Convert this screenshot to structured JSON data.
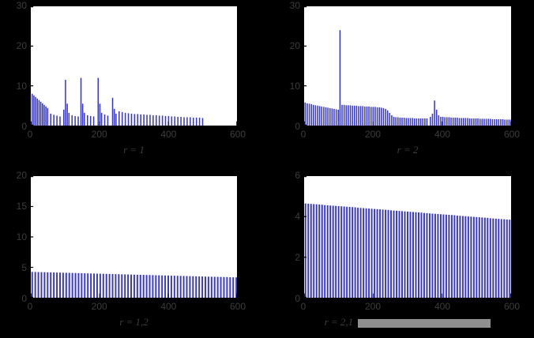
{
  "page": {
    "background_color": "#000000"
  },
  "figure": {
    "plot_background": "#ffffff",
    "axis_color": "#000000",
    "tick_label_color": "#3c3c3c",
    "bar_color": "#3737c8",
    "selection_highlight_color": "#8f8f8f"
  },
  "chart_data": [
    {
      "id": "a",
      "type": "bar",
      "xlabel": "r = 1",
      "xlim": [
        0,
        600
      ],
      "ylim": [
        0,
        30
      ],
      "xticks": [
        0,
        200,
        400,
        600
      ],
      "yticks": [
        0,
        10,
        20,
        30
      ],
      "bar_width": 3.5,
      "x": [
        4,
        9,
        14,
        19,
        24,
        29,
        34,
        39,
        44,
        49,
        58,
        67,
        76,
        85,
        96,
        101,
        106,
        111,
        120,
        129,
        138,
        146,
        151,
        156,
        165,
        174,
        183,
        196,
        201,
        206,
        215,
        224,
        238,
        243,
        248,
        257,
        266,
        275,
        284,
        293,
        302,
        311,
        320,
        329,
        338,
        347,
        356,
        365,
        374,
        383,
        392,
        401,
        410,
        419,
        428,
        437,
        446,
        455,
        464,
        473,
        482,
        491,
        500
      ],
      "values": [
        8,
        7.6,
        7.2,
        6.8,
        6.4,
        6,
        5.6,
        5.2,
        4.8,
        4.4,
        3,
        2.7,
        2.5,
        2.3,
        4,
        11.5,
        5.5,
        3.2,
        2.6,
        2.4,
        2.3,
        12,
        5.5,
        3.2,
        2.6,
        2.4,
        2.3,
        12,
        5.5,
        3.2,
        2.8,
        2.5,
        7,
        4.2,
        3,
        3.6,
        3.4,
        3.2,
        3.1,
        3,
        2.9,
        2.9,
        2.8,
        2.8,
        2.7,
        2.7,
        2.6,
        2.6,
        2.5,
        2.5,
        2.4,
        2.4,
        2.3,
        2.3,
        2.2,
        2.2,
        2.1,
        2.1,
        2.1,
        2,
        2,
        2,
        1.9
      ]
    },
    {
      "id": "b",
      "type": "bar",
      "xlabel": "r = 2",
      "xlim": [
        0,
        600
      ],
      "ylim": [
        0,
        30
      ],
      "xticks": [
        0,
        200,
        400,
        600
      ],
      "yticks": [
        0,
        10,
        20,
        30
      ],
      "bar_width": 3.5,
      "x": [
        3,
        9,
        15,
        21,
        27,
        33,
        39,
        45,
        51,
        57,
        63,
        69,
        75,
        81,
        87,
        93,
        99,
        104,
        110,
        116,
        122,
        128,
        134,
        140,
        146,
        152,
        158,
        164,
        170,
        176,
        182,
        188,
        194,
        200,
        206,
        212,
        218,
        224,
        230,
        236,
        242,
        248,
        254,
        260,
        266,
        272,
        278,
        284,
        290,
        296,
        302,
        308,
        314,
        320,
        326,
        332,
        338,
        344,
        350,
        356,
        366,
        372,
        378,
        384,
        390,
        396,
        402,
        408,
        414,
        420,
        426,
        432,
        438,
        444,
        450,
        456,
        462,
        468,
        474,
        480,
        486,
        492,
        498,
        504,
        510,
        516,
        522,
        528,
        534,
        540,
        546,
        552,
        558,
        564,
        570,
        576,
        582,
        588,
        594,
        600
      ],
      "values": [
        5.8,
        5.6,
        5.5,
        5.4,
        5.2,
        5.1,
        5,
        4.9,
        4.8,
        4.7,
        4.6,
        4.5,
        4.4,
        4.3,
        4.2,
        4.1,
        4,
        24,
        5.2,
        5.2,
        5.1,
        5.1,
        5.1,
        5,
        5,
        5,
        4.9,
        4.9,
        4.9,
        4.8,
        4.8,
        4.8,
        4.7,
        4.7,
        4.7,
        4.6,
        4.6,
        4.5,
        4.4,
        4.2,
        3.8,
        3.2,
        2.6,
        2.2,
        2.1,
        2.1,
        2,
        2,
        2,
        1.9,
        1.9,
        1.9,
        1.9,
        1.8,
        1.8,
        1.8,
        1.8,
        1.8,
        1.8,
        1.8,
        2.2,
        3,
        6.3,
        4,
        2.6,
        2.2,
        2.2,
        2.1,
        2.1,
        2.1,
        2,
        2,
        2,
        2,
        1.9,
        1.9,
        1.9,
        1.9,
        1.9,
        1.8,
        1.8,
        1.8,
        1.8,
        1.8,
        1.7,
        1.7,
        1.7,
        1.7,
        1.7,
        1.7,
        1.6,
        1.6,
        1.6,
        1.6,
        1.6,
        1.6,
        1.5,
        1.5,
        1.5,
        1.5
      ]
    },
    {
      "id": "c",
      "type": "bar",
      "xlabel": "r = 1,2",
      "xlim": [
        0,
        600
      ],
      "ylim": [
        0,
        20
      ],
      "xticks": [
        0,
        200,
        400,
        600
      ],
      "yticks": [
        0,
        5,
        10,
        15,
        20
      ],
      "bar_width": 4.5,
      "x": [
        4,
        13,
        22,
        31,
        40,
        49,
        58,
        67,
        76,
        85,
        94,
        103,
        112,
        121,
        130,
        139,
        148,
        157,
        166,
        175,
        184,
        193,
        202,
        211,
        220,
        229,
        238,
        247,
        256,
        265,
        274,
        283,
        292,
        301,
        310,
        319,
        328,
        337,
        346,
        355,
        364,
        373,
        382,
        391,
        400,
        409,
        418,
        427,
        436,
        445,
        454,
        463,
        472,
        481,
        490,
        499,
        508,
        517,
        526,
        535,
        544,
        553,
        562,
        571,
        580,
        589,
        598
      ],
      "values": [
        4.25,
        4.24,
        4.22,
        4.21,
        4.2,
        4.18,
        4.17,
        4.16,
        4.14,
        4.13,
        4.11,
        4.1,
        4.09,
        4.07,
        4.06,
        4.05,
        4.03,
        4.02,
        4,
        3.99,
        3.98,
        3.96,
        3.95,
        3.94,
        3.92,
        3.91,
        3.89,
        3.88,
        3.87,
        3.85,
        3.84,
        3.83,
        3.81,
        3.8,
        3.78,
        3.77,
        3.76,
        3.74,
        3.73,
        3.72,
        3.7,
        3.69,
        3.67,
        3.66,
        3.65,
        3.63,
        3.62,
        3.61,
        3.59,
        3.58,
        3.56,
        3.55,
        3.54,
        3.52,
        3.51,
        3.5,
        3.48,
        3.47,
        3.45,
        3.44,
        3.43,
        3.41,
        3.4,
        3.39,
        3.37,
        3.36,
        3.35
      ]
    },
    {
      "id": "d",
      "type": "bar",
      "xlabel": "r = 2,1",
      "xlabel_highlighted": true,
      "xlim": [
        0,
        600
      ],
      "ylim": [
        0,
        6
      ],
      "xticks": [
        0,
        200,
        400,
        600
      ],
      "yticks": [
        0,
        2,
        4,
        6
      ],
      "bar_width": 4.5,
      "x": [
        4,
        12,
        20,
        28,
        36,
        44,
        52,
        60,
        68,
        76,
        84,
        92,
        100,
        108,
        116,
        124,
        132,
        140,
        148,
        156,
        164,
        172,
        180,
        188,
        196,
        204,
        212,
        220,
        228,
        236,
        244,
        252,
        260,
        268,
        276,
        284,
        292,
        300,
        308,
        316,
        324,
        332,
        340,
        348,
        356,
        364,
        372,
        380,
        388,
        396,
        404,
        412,
        420,
        428,
        436,
        444,
        452,
        460,
        468,
        476,
        484,
        492,
        500,
        508,
        516,
        524,
        532,
        540,
        548,
        556,
        564,
        572,
        580,
        588,
        596
      ],
      "values": [
        4.65,
        4.64,
        4.63,
        4.62,
        4.61,
        4.6,
        4.59,
        4.57,
        4.56,
        4.55,
        4.54,
        4.53,
        4.52,
        4.51,
        4.5,
        4.49,
        4.48,
        4.47,
        4.46,
        4.44,
        4.43,
        4.42,
        4.41,
        4.4,
        4.39,
        4.38,
        4.37,
        4.36,
        4.35,
        4.34,
        4.33,
        4.31,
        4.3,
        4.29,
        4.28,
        4.27,
        4.26,
        4.25,
        4.24,
        4.23,
        4.22,
        4.21,
        4.2,
        4.18,
        4.17,
        4.16,
        4.15,
        4.14,
        4.13,
        4.12,
        4.11,
        4.1,
        4.09,
        4.08,
        4.07,
        4.05,
        4.04,
        4.03,
        4.02,
        4.01,
        4,
        3.99,
        3.98,
        3.97,
        3.96,
        3.95,
        3.94,
        3.92,
        3.91,
        3.9,
        3.89,
        3.88,
        3.87,
        3.86,
        3.85
      ]
    }
  ]
}
